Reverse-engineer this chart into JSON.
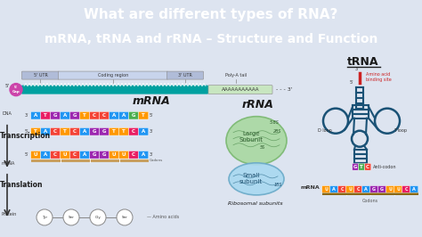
{
  "title_line1": "What are different types of RNA?",
  "title_line2": "mRNA, tRNA and rRNA – Structure and Function",
  "title_bg": "#2e4a87",
  "title_color": "#ffffff",
  "body_bg": "#dde4f0",
  "mrna_label": "mRNA",
  "rrna_label": "rRNA",
  "trna_label": "tRNA",
  "teal_strand": "#00a0a0",
  "poly_a_green": "#c8e6c0",
  "utr_color": "#b0bcd8",
  "coding_color": "#c8d4ec",
  "cap_color": "#cc44aa",
  "large_subunit_color": "#a8d8a0",
  "small_subunit_color": "#a8d8f0",
  "trna_color": "#1a5276",
  "dna_colors_top": [
    "#2196f3",
    "#e91e63",
    "#9c27b0",
    "#2196f3",
    "#9c27b0",
    "#ff9800",
    "#f44336",
    "#f44336",
    "#2196f3",
    "#2196f3",
    "#4caf50",
    "#ff9800"
  ],
  "dna_colors_bot": [
    "#ff9800",
    "#2196f3",
    "#f44336",
    "#ff9800",
    "#f44336",
    "#2196f3",
    "#9c27b0",
    "#9c27b0",
    "#ff9800",
    "#ff9800",
    "#e91e63",
    "#2196f3"
  ],
  "dna_letters_top": [
    "A",
    "T",
    "G",
    "A",
    "G",
    "T",
    "C",
    "C",
    "A",
    "A",
    "G",
    "T"
  ],
  "dna_letters_bot": [
    "T",
    "A",
    "C",
    "T",
    "C",
    "A",
    "G",
    "G",
    "T",
    "T",
    "C",
    "A"
  ],
  "mrna_letters": [
    "U",
    "A",
    "C",
    "U",
    "C",
    "A",
    "G",
    "G",
    "U",
    "U",
    "C",
    "A"
  ],
  "mrna_colors": [
    "#ff9800",
    "#2196f3",
    "#f44336",
    "#ff9800",
    "#f44336",
    "#2196f3",
    "#9c27b0",
    "#9c27b0",
    "#ff9800",
    "#ff9800",
    "#e91e63",
    "#2196f3"
  ],
  "anticodon_letters": [
    "G",
    "T",
    "C"
  ],
  "anticodon_colors": [
    "#9c27b0",
    "#4caf50",
    "#f44336"
  ],
  "mrna2_letters": [
    "U",
    "A",
    "C",
    "U",
    "C",
    "A",
    "G",
    "G",
    "U",
    "U",
    "C",
    "A"
  ],
  "mrna2_colors": [
    "#ff9800",
    "#2196f3",
    "#f44336",
    "#ff9800",
    "#f44336",
    "#2196f3",
    "#9c27b0",
    "#9c27b0",
    "#ff9800",
    "#ff9800",
    "#e91e63",
    "#2196f3"
  ],
  "aa_labels": [
    "Tyr",
    "Ser",
    "Gly",
    "Ser"
  ]
}
